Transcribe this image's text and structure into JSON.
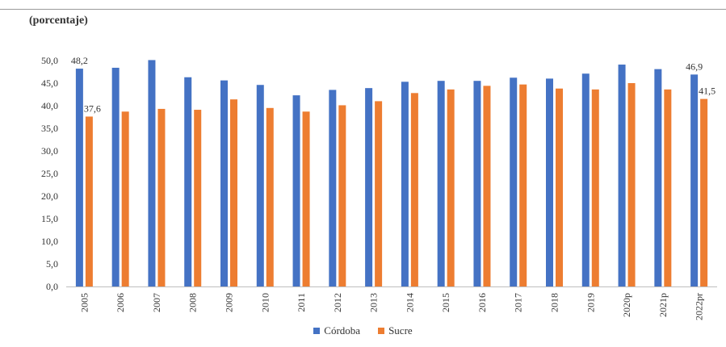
{
  "chart_data": {
    "type": "bar",
    "unit_label": "(porcentaje)",
    "categories": [
      "2005",
      "2006",
      "2007",
      "2008",
      "2009",
      "2010",
      "2011",
      "2012",
      "2013",
      "2014",
      "2015",
      "2016",
      "2017",
      "2018",
      "2019",
      "2020p",
      "2021p",
      "2022pr"
    ],
    "series": [
      {
        "name": "Córdoba",
        "color": "#4472C4",
        "values": [
          48.2,
          48.4,
          50.1,
          46.3,
          45.6,
          44.6,
          42.3,
          43.5,
          43.9,
          45.3,
          45.5,
          45.5,
          46.2,
          46.0,
          47.1,
          49.1,
          48.1,
          46.9
        ]
      },
      {
        "name": "Sucre",
        "color": "#ED7D31",
        "values": [
          37.6,
          38.7,
          39.3,
          39.1,
          41.4,
          39.5,
          38.7,
          40.1,
          41.0,
          42.8,
          43.6,
          44.4,
          44.7,
          43.8,
          43.6,
          45.0,
          43.6,
          41.5
        ]
      }
    ],
    "y_ticks": [
      "0,0",
      "5,0",
      "10,0",
      "15,0",
      "20,0",
      "25,0",
      "30,0",
      "35,0",
      "40,0",
      "45,0",
      "50,0"
    ],
    "ylim": [
      0,
      50
    ],
    "data_labels": [
      {
        "series": 0,
        "index": 0,
        "text": "48,2"
      },
      {
        "series": 1,
        "index": 0,
        "text": "37,6"
      },
      {
        "series": 0,
        "index": 17,
        "text": "46,9"
      },
      {
        "series": 1,
        "index": 17,
        "text": "41,5"
      }
    ],
    "gridlines": false,
    "legend_position": "bottom-center"
  }
}
